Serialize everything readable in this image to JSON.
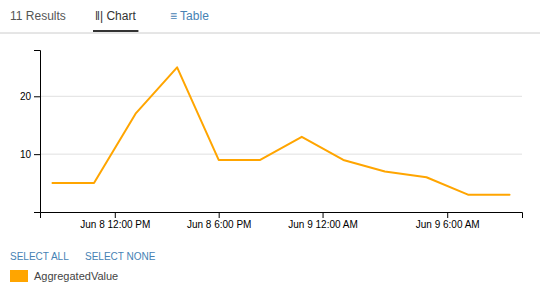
{
  "chart_data": {
    "type": "line",
    "title": "11 Results",
    "annotations": [
      "‖| Chart",
      "≡ Table",
      "SELECT ALL",
      "SELECT NONE"
    ],
    "x": [
      0,
      1,
      2,
      3,
      4,
      5,
      6,
      7,
      8,
      9,
      10,
      11
    ],
    "series": [
      {
        "name": "AggregatedValue",
        "color": "#FFA500",
        "values": [
          5,
          5,
          17,
          25,
          9,
          9,
          13,
          9,
          7,
          6,
          3,
          3
        ]
      }
    ],
    "xlim": [
      -0.3,
      11.3
    ],
    "xticks": [
      {
        "value": 1.5,
        "label": "Jun 8 12:00 PM"
      },
      {
        "value": 4.0,
        "label": "Jun 8 6:00 PM"
      },
      {
        "value": 6.5,
        "label": "Jun 9 12:00 AM"
      },
      {
        "value": 9.5,
        "label": "Jun 9 6:00 AM"
      }
    ],
    "ylim": [
      0,
      28
    ],
    "yticks": [
      10,
      20
    ],
    "grid": true,
    "legend": "bottom left"
  }
}
